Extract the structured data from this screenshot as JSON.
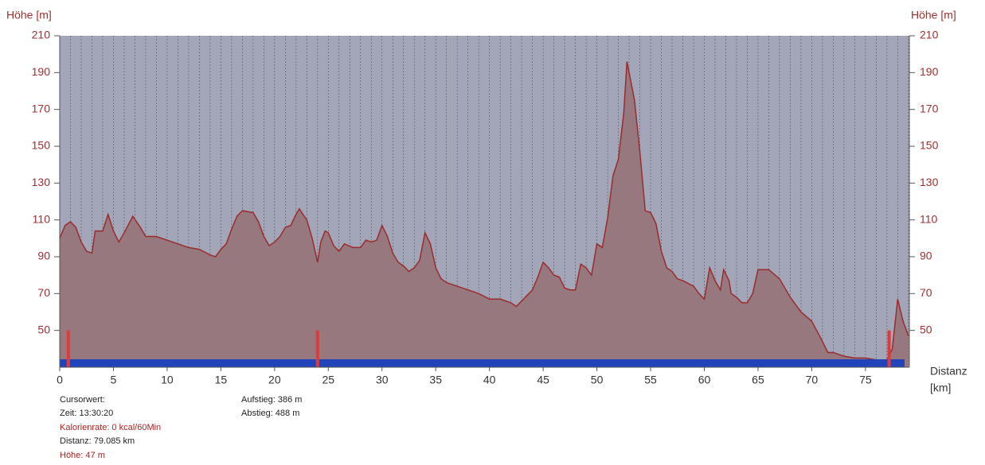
{
  "chart_data": {
    "type": "area",
    "y_label": "Höhe [m]",
    "x_label": "Distanz",
    "x_unit": "[km]",
    "xlim": [
      0,
      79.085
    ],
    "ylim": [
      30,
      210
    ],
    "xticks": [
      0,
      5,
      10,
      15,
      20,
      25,
      30,
      35,
      40,
      45,
      50,
      55,
      60,
      65,
      70,
      75
    ],
    "yticks": [
      50,
      70,
      90,
      110,
      130,
      150,
      170,
      190,
      210
    ],
    "grid_x": [
      1,
      2,
      3,
      4,
      5,
      6,
      7,
      8,
      9,
      10,
      11,
      12,
      13,
      14,
      15,
      16,
      17,
      18,
      19,
      20,
      21,
      22,
      23,
      24,
      25,
      26,
      27,
      28,
      29,
      30,
      31,
      32,
      33,
      34,
      35,
      36,
      37,
      38,
      39,
      40,
      41,
      42,
      43,
      44,
      45,
      46,
      47,
      48,
      49,
      50,
      51,
      52,
      53,
      54,
      55,
      56,
      57,
      58,
      59,
      60,
      61,
      62,
      63,
      64,
      65,
      66,
      67,
      68,
      69,
      70,
      71,
      72,
      73,
      74,
      75,
      76,
      77,
      78,
      79
    ],
    "color": "#9b2b2b",
    "fill": "#98787f",
    "background": "#a3a6b8",
    "markers": [
      0.8,
      24,
      77.2
    ],
    "marker_color": "#e03a3a",
    "x": [
      0,
      0.5,
      1,
      1.5,
      2,
      2.5,
      3,
      3.3,
      4,
      4.5,
      5,
      5.5,
      6,
      6.8,
      7.5,
      8,
      9,
      10,
      11,
      12,
      13,
      14,
      14.5,
      15,
      15.5,
      16,
      16.5,
      17,
      18,
      18.5,
      19,
      19.5,
      20,
      20.5,
      21,
      21.5,
      22,
      22.3,
      23,
      23.5,
      24,
      24.3,
      24.7,
      25,
      25.5,
      26,
      26.5,
      27.3,
      28,
      28.5,
      29,
      29.5,
      30,
      30.5,
      31,
      31.5,
      32,
      32.5,
      33,
      33.5,
      34,
      34.5,
      35,
      35.5,
      36,
      37,
      38,
      39,
      40,
      41,
      42,
      42.5,
      43,
      44,
      44.5,
      45,
      45.5,
      46,
      46.5,
      47,
      47.5,
      48,
      48.5,
      49,
      49.5,
      50,
      50.5,
      51,
      51.5,
      52,
      52.5,
      52.8,
      53.5,
      54,
      54.5,
      55,
      55.5,
      56,
      56.5,
      57,
      57.5,
      58,
      59,
      59.5,
      60,
      60.5,
      61,
      61.5,
      61.8,
      62.3,
      62.5,
      63,
      63.5,
      64,
      64.5,
      65,
      65.5,
      66,
      67,
      68,
      69,
      70,
      71,
      71.5,
      72,
      73,
      74,
      75,
      76,
      77,
      77.5,
      78,
      78.5,
      79
    ],
    "values": [
      100,
      107,
      109,
      106,
      98,
      93,
      92,
      104,
      104,
      113,
      104,
      98,
      103,
      112,
      106,
      101,
      101,
      99,
      97,
      95,
      94,
      91,
      90,
      94,
      97,
      105,
      112,
      115,
      114,
      109,
      101,
      96,
      98,
      101,
      106,
      107,
      113,
      116,
      110,
      100,
      87,
      98,
      104,
      103,
      96,
      93,
      97,
      95,
      95,
      99,
      98,
      99,
      107,
      101,
      92,
      87,
      85,
      82,
      84,
      88,
      103,
      97,
      84,
      78,
      76,
      74,
      72,
      70,
      67,
      67,
      65,
      63,
      66,
      72,
      79,
      87,
      84,
      80,
      79,
      73,
      72,
      72,
      86,
      84,
      80,
      97,
      95,
      111,
      134,
      143,
      168,
      196,
      175,
      147,
      115,
      114,
      108,
      93,
      84,
      82,
      78,
      77,
      74,
      70,
      67,
      84,
      77,
      72,
      83,
      77,
      70,
      68,
      65,
      65,
      70,
      83,
      83,
      83,
      78,
      68,
      60,
      55,
      44,
      38,
      38,
      36,
      35,
      35,
      34,
      34,
      40,
      67,
      55,
      47
    ]
  },
  "info": {
    "cursor": "Cursorwert:",
    "time": "Zeit: 13:30:20",
    "calories": "Kalorienrate: 0 kcal/60Min",
    "distance": "Distanz: 79.085 km",
    "height": "Höhe: 47 m",
    "ascent": "Aufstieg: 386 m",
    "descent": "Abstieg: 488 m"
  }
}
